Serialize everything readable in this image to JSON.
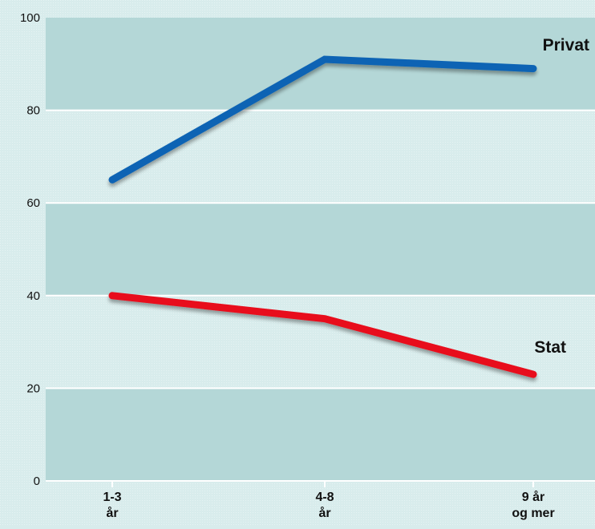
{
  "chart_data": {
    "type": "line",
    "categories": [
      [
        "1-3",
        "år"
      ],
      [
        "4-8",
        "år"
      ],
      [
        "9 år",
        "og mer"
      ]
    ],
    "series": [
      {
        "name": "Privat",
        "values": [
          65,
          91,
          89
        ],
        "color": "#0a64b4"
      },
      {
        "name": "Stat",
        "values": [
          40,
          35,
          23
        ],
        "color": "#e8101c"
      }
    ],
    "ylim": [
      0,
      100
    ],
    "yticks": [
      0,
      20,
      40,
      60,
      80,
      100
    ],
    "grid": true,
    "background": "#d8ecec",
    "band_color": "#b4d7d7",
    "title": "",
    "xlabel": "",
    "ylabel": ""
  }
}
